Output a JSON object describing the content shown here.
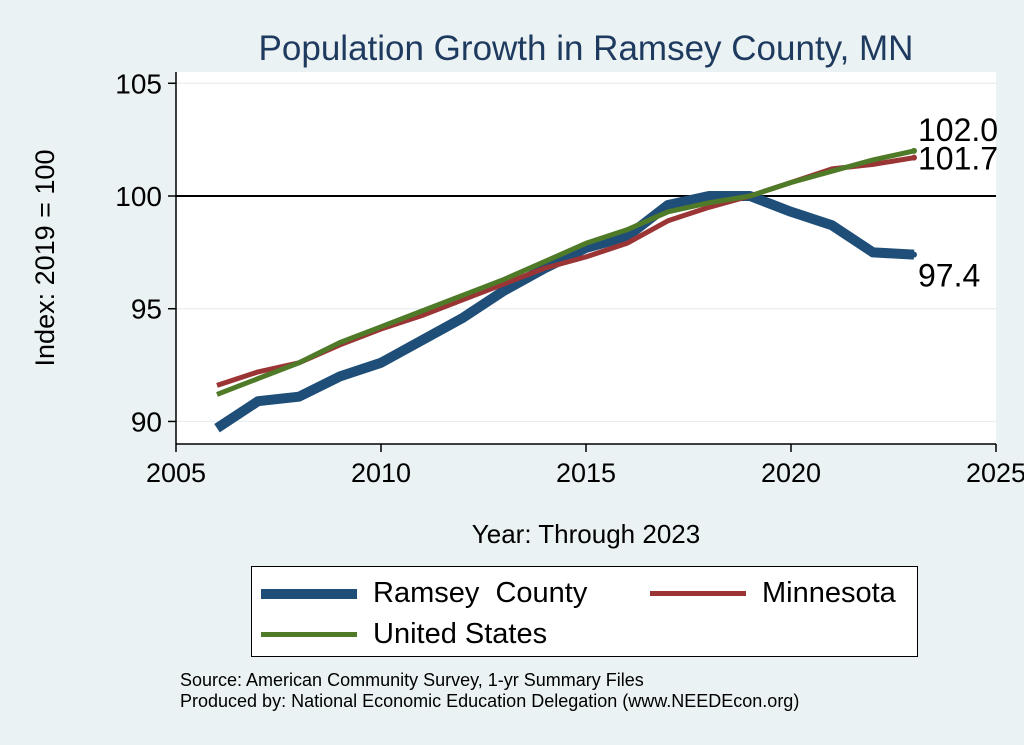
{
  "chart_data": {
    "type": "line",
    "title": "Population Growth in Ramsey County, MN",
    "xlabel": "Year: Through 2023",
    "ylabel": "Index: 2019 = 100",
    "xlim": [
      2005,
      2025
    ],
    "ylim": [
      89,
      105.5
    ],
    "x_ticks": [
      2005,
      2010,
      2015,
      2020,
      2025
    ],
    "y_ticks": [
      90,
      95,
      100,
      105
    ],
    "reference_line": 100,
    "x": [
      2006,
      2007,
      2008,
      2009,
      2010,
      2011,
      2012,
      2013,
      2014,
      2015,
      2016,
      2017,
      2018,
      2019,
      2020,
      2021,
      2022,
      2023
    ],
    "series": [
      {
        "name": "Ramsey County",
        "color": "#1f4e79",
        "values": [
          89.7,
          90.9,
          91.1,
          92.0,
          92.6,
          93.6,
          94.6,
          95.8,
          96.8,
          97.7,
          98.2,
          99.6,
          100.0,
          100.0,
          99.3,
          98.7,
          97.5,
          97.4
        ],
        "end_label": "97.4"
      },
      {
        "name": "Minnesota",
        "color": "#9b3535",
        "values": [
          91.6,
          92.2,
          92.6,
          93.4,
          94.1,
          94.7,
          95.4,
          96.1,
          96.8,
          97.3,
          97.9,
          98.9,
          99.5,
          100.0,
          100.6,
          101.2,
          101.4,
          101.7
        ],
        "end_label": "101.7"
      },
      {
        "name": "United States",
        "color": "#4f7a28",
        "values": [
          91.2,
          91.9,
          92.6,
          93.5,
          94.2,
          94.9,
          95.6,
          96.3,
          97.1,
          97.9,
          98.5,
          99.3,
          99.7,
          100.0,
          100.6,
          101.1,
          101.6,
          102.0
        ],
        "end_label": "102.0"
      }
    ],
    "legend": [
      "Ramsey  County",
      "Minnesota",
      "United States"
    ],
    "legend_placement": "bottom"
  },
  "source_line1": "Source: American Community Survey, 1-yr Summary Files",
  "source_line2": "Produced by: National Economic Education Delegation (www.NEEDEcon.org)"
}
